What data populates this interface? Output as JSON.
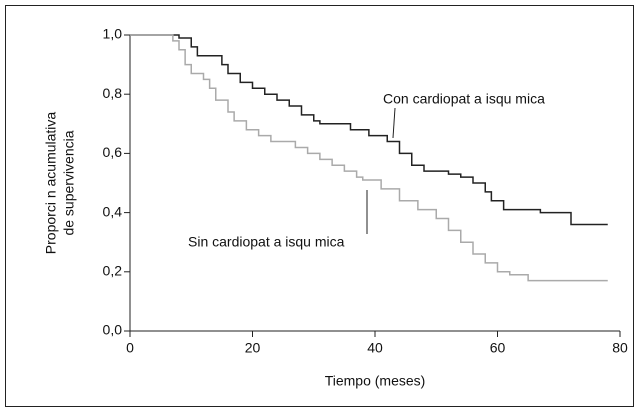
{
  "chart_data": {
    "type": "line",
    "step": true,
    "xlabel": "Tiempo (meses)",
    "ylabel": [
      "Proporci n acumulativa",
      "de supervivencia"
    ],
    "xlim": [
      0,
      80
    ],
    "xticks": [
      0,
      20,
      40,
      60,
      80
    ],
    "ylim": [
      0,
      1
    ],
    "yticks": [
      {
        "value": 0,
        "label": "0,0"
      },
      {
        "value": 0.2,
        "label": "0,2"
      },
      {
        "value": 0.4,
        "label": "0,4"
      },
      {
        "value": 0.6,
        "label": "0,6"
      },
      {
        "value": 0.8,
        "label": "0,8"
      },
      {
        "value": 1,
        "label": "1,0"
      }
    ],
    "series": [
      {
        "name": "Con cardiopat a isqu mica",
        "color": "#222222",
        "x": [
          0,
          8,
          10,
          11,
          15,
          16,
          18,
          20,
          22,
          24,
          26,
          28,
          30,
          31,
          36,
          39,
          42,
          44,
          46,
          48,
          52,
          54,
          56,
          58,
          59,
          61,
          67,
          72,
          78
        ],
        "values": [
          1,
          0.99,
          0.96,
          0.93,
          0.9,
          0.87,
          0.84,
          0.82,
          0.8,
          0.78,
          0.76,
          0.73,
          0.71,
          0.7,
          0.68,
          0.66,
          0.64,
          0.6,
          0.56,
          0.54,
          0.53,
          0.52,
          0.5,
          0.47,
          0.44,
          0.41,
          0.4,
          0.36,
          0.36
        ]
      },
      {
        "name": "Sin cardiopat a isqu mica",
        "color": "#aaaaaa",
        "x": [
          0,
          7,
          8,
          9,
          10,
          12,
          13,
          14,
          16,
          17,
          19,
          21,
          23,
          27,
          29,
          31,
          33,
          35,
          37,
          38,
          41,
          44,
          47,
          50,
          52,
          54,
          56,
          58,
          60,
          62,
          65,
          78
        ],
        "values": [
          1,
          0.98,
          0.95,
          0.9,
          0.87,
          0.85,
          0.82,
          0.78,
          0.74,
          0.71,
          0.68,
          0.66,
          0.64,
          0.62,
          0.6,
          0.58,
          0.56,
          0.54,
          0.52,
          0.51,
          0.48,
          0.44,
          0.41,
          0.38,
          0.34,
          0.3,
          0.26,
          0.23,
          0.2,
          0.19,
          0.17,
          0.17
        ]
      }
    ]
  }
}
